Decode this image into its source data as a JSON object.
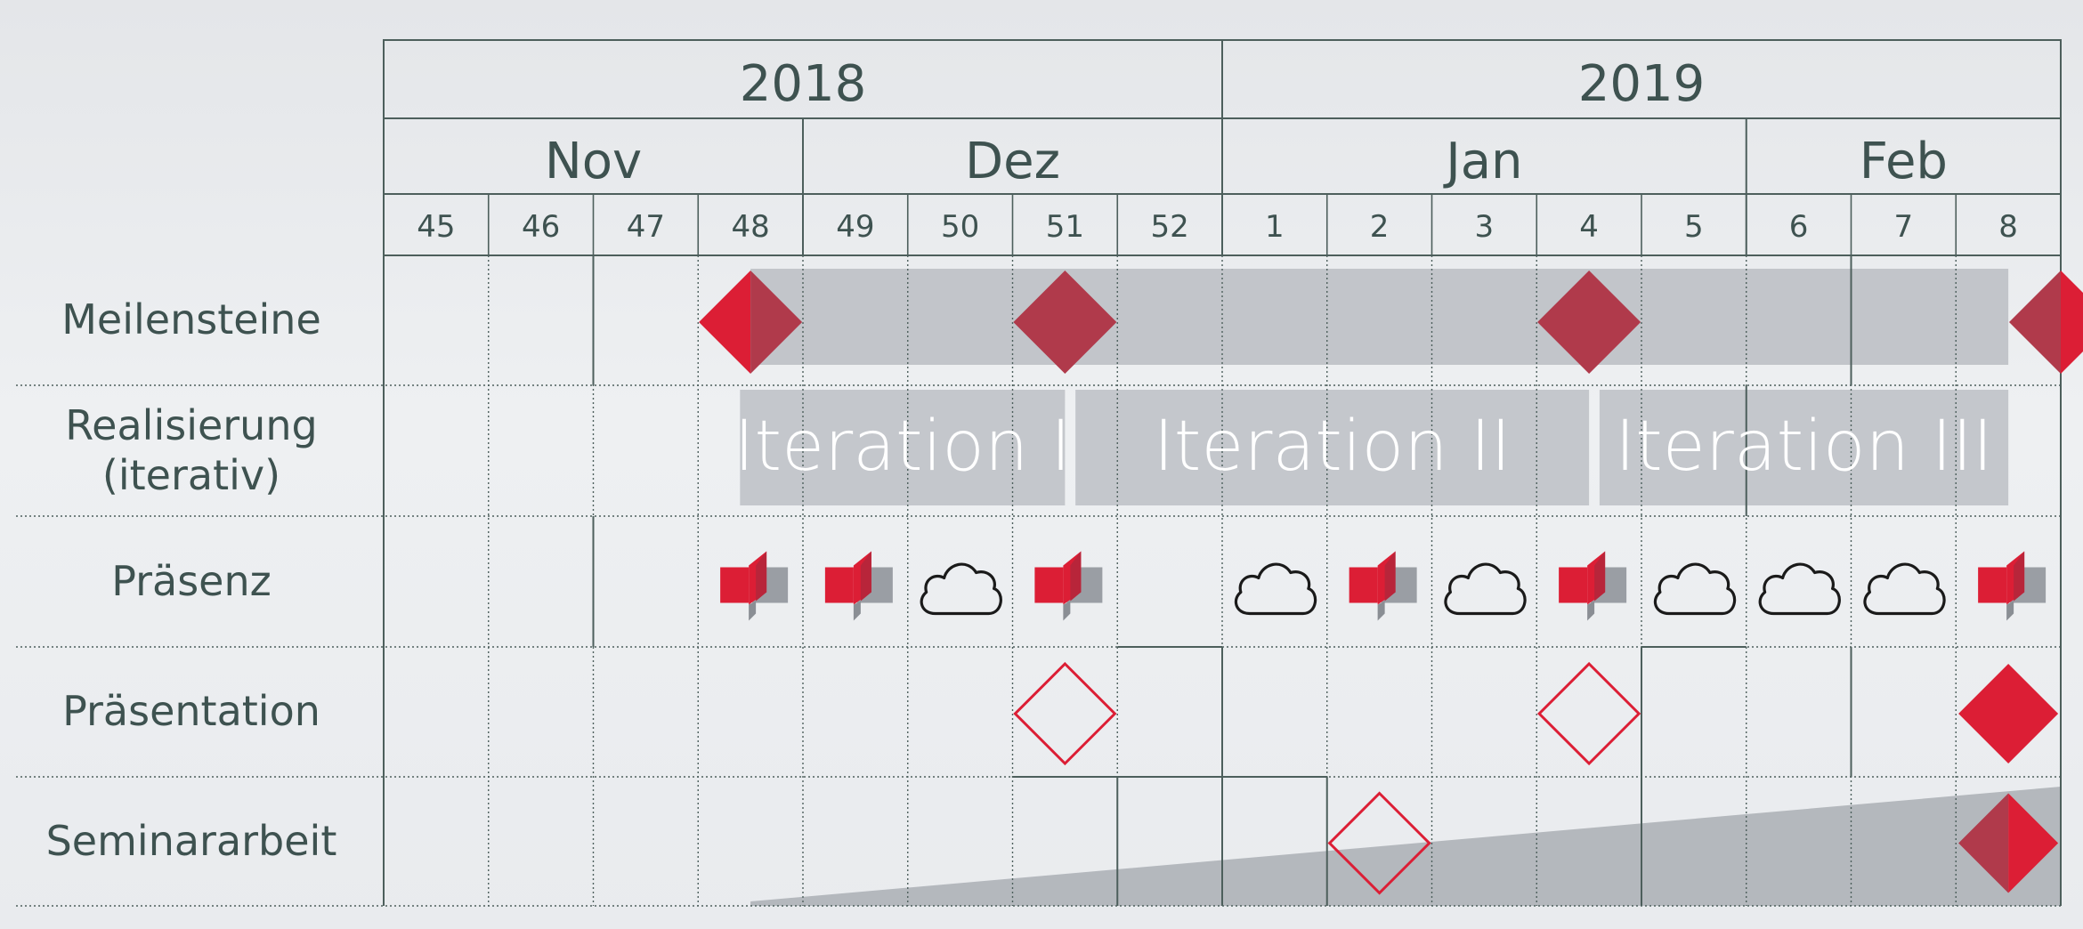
{
  "years": [
    {
      "label": "2018",
      "start_week": 45,
      "end_week": 52
    },
    {
      "label": "2019",
      "start_week": 1,
      "end_week": 8
    }
  ],
  "months": [
    {
      "label": "Nov",
      "start_col": 0,
      "span": 4
    },
    {
      "label": "Dez",
      "start_col": 4,
      "span": 4
    },
    {
      "label": "Jan",
      "start_col": 8,
      "span": 5
    },
    {
      "label": "Feb",
      "start_col": 13,
      "span": 3
    }
  ],
  "weeks": [
    "45",
    "46",
    "47",
    "48",
    "49",
    "50",
    "51",
    "52",
    "1",
    "2",
    "3",
    "4",
    "5",
    "6",
    "7",
    "8"
  ],
  "rows": [
    {
      "key": "meilensteine",
      "label": "Meilensteine"
    },
    {
      "key": "realisierung",
      "label": "Realisierung\n(iterativ)"
    },
    {
      "key": "praesenz",
      "label": "Präsenz"
    },
    {
      "key": "praesentation",
      "label": "Präsentation"
    },
    {
      "key": "seminararbeit",
      "label": "Seminararbeit"
    }
  ],
  "milestones": {
    "band_start_col": 3,
    "band_end_col": 15,
    "diamond_cols": [
      3,
      6,
      11,
      15
    ]
  },
  "iterations": [
    {
      "label": "Iteration I",
      "start_col": 3.4,
      "end_col": 6.5
    },
    {
      "label": "Iteration II",
      "start_col": 6.6,
      "end_col": 11.5
    },
    {
      "label": "Iteration III",
      "start_col": 11.6,
      "end_col": 15.5
    }
  ],
  "praesenz": [
    {
      "col": 3,
      "type": "presence-icon"
    },
    {
      "col": 4,
      "type": "presence-icon"
    },
    {
      "col": 5,
      "type": "cloud-icon"
    },
    {
      "col": 6,
      "type": "presence-icon"
    },
    {
      "col": 8,
      "type": "cloud-icon"
    },
    {
      "col": 9,
      "type": "presence-icon"
    },
    {
      "col": 10,
      "type": "cloud-icon"
    },
    {
      "col": 11,
      "type": "presence-icon"
    },
    {
      "col": 12,
      "type": "cloud-icon"
    },
    {
      "col": 13,
      "type": "cloud-icon"
    },
    {
      "col": 14,
      "type": "cloud-icon"
    },
    {
      "col": 15,
      "type": "presence-icon"
    }
  ],
  "praesentation": [
    {
      "col": 6,
      "style": "outline"
    },
    {
      "col": 11,
      "style": "outline"
    },
    {
      "col": 15,
      "style": "filled"
    }
  ],
  "seminararbeit": {
    "wedge_start_col": 3,
    "wedge_end_col": 16,
    "diamonds": [
      {
        "col": 9,
        "style": "outline"
      },
      {
        "col": 15,
        "style": "filled"
      }
    ]
  },
  "colors": {
    "red": "#dc1e35",
    "dark_red": "#b03a4b",
    "gray_band": "#c2c5ca",
    "gray_iteration": "#c4c7cc",
    "gray_wedge": "#b4b8bd",
    "line": "#4d5f5c",
    "text": "#3e5250"
  }
}
